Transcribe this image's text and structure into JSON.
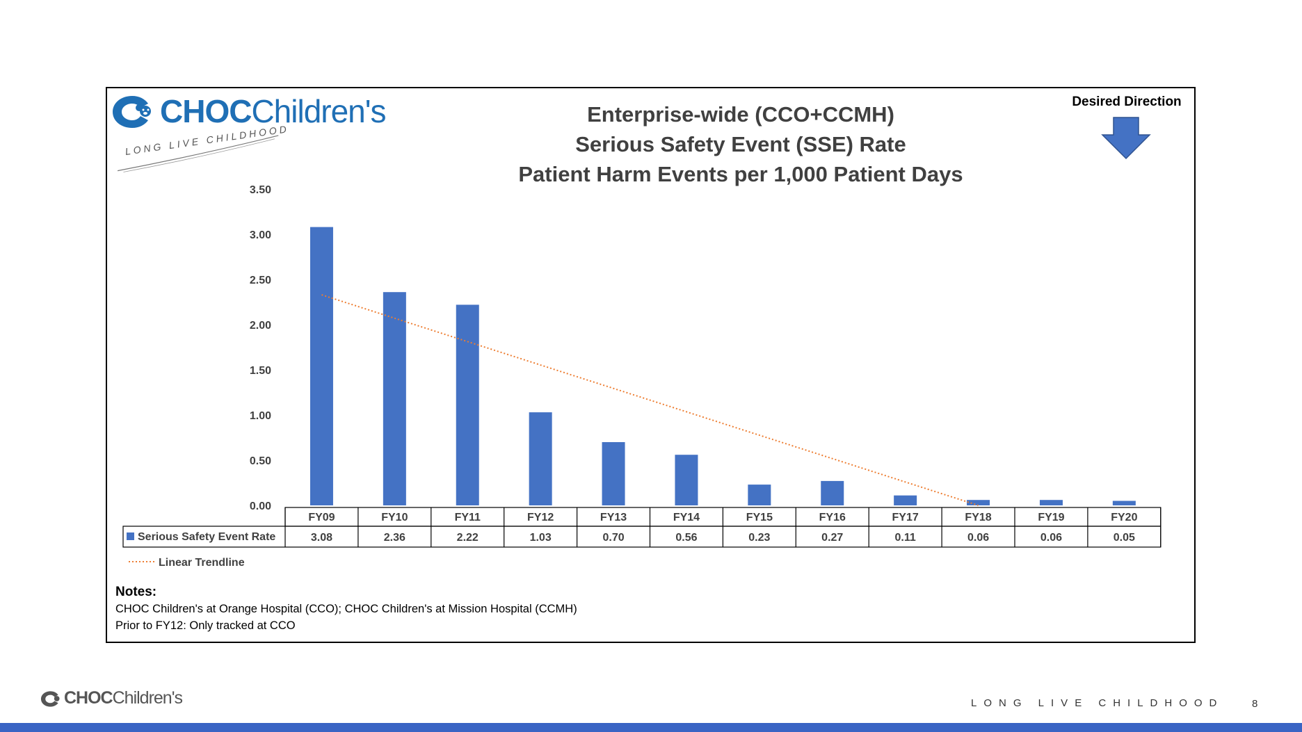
{
  "brand": {
    "name_bold": "CHOC",
    "name_light": "Children's",
    "tagline": "LONG LIVE CHILDHOOD",
    "primary_color": "#1f6fb5"
  },
  "title_lines": [
    "Enterprise-wide (CCO+CCMH)",
    "Serious Safety Event (SSE) Rate",
    "Patient Harm Events per 1,000 Patient Days"
  ],
  "desired_direction": {
    "label": "Desired Direction",
    "icon": "down-arrow-icon"
  },
  "chart_data": {
    "type": "bar",
    "title": "Enterprise-wide (CCO+CCMH) Serious Safety Event (SSE) Rate Patient Harm Events per 1,000 Patient Days",
    "categories": [
      "FY09",
      "FY10",
      "FY11",
      "FY12",
      "FY13",
      "FY14",
      "FY15",
      "FY16",
      "FY17",
      "FY18",
      "FY19",
      "FY20"
    ],
    "series": [
      {
        "name": "Serious Safety Event Rate",
        "color": "#4472c4",
        "values": [
          3.08,
          2.36,
          2.22,
          1.03,
          0.7,
          0.56,
          0.23,
          0.27,
          0.11,
          0.06,
          0.06,
          0.05
        ],
        "value_labels": [
          "3.08",
          "2.36",
          "2.22",
          "1.03",
          "0.70",
          "0.56",
          "0.23",
          "0.27",
          "0.11",
          "0.06",
          "0.06",
          "0.05"
        ]
      }
    ],
    "trendline": {
      "name": "Linear Trendline",
      "color": "#ed7d31",
      "type": "linear",
      "start_value": 2.33,
      "end_value": 0.0,
      "start_category": "FY09",
      "end_category": "FY18"
    },
    "y_ticks": [
      "0.00",
      "0.50",
      "1.00",
      "1.50",
      "2.00",
      "2.50",
      "3.00",
      "3.50"
    ],
    "ylim": [
      0,
      3.5
    ],
    "xlabel": "",
    "ylabel": "",
    "grid": false,
    "data_table": true,
    "legend_position": "left of data table"
  },
  "notes": {
    "heading": "Notes:",
    "lines": [
      "CHOC Children's at Orange Hospital (CCO); CHOC Children's at Mission Hospital (CCMH)",
      "Prior to FY12: Only tracked at CCO"
    ]
  },
  "footer": {
    "brand_bold": "CHOC",
    "brand_light": "Children's",
    "tagline": "LONG LIVE CHILDHOOD",
    "page_number": "8",
    "bar_color": "#3a64c4"
  }
}
